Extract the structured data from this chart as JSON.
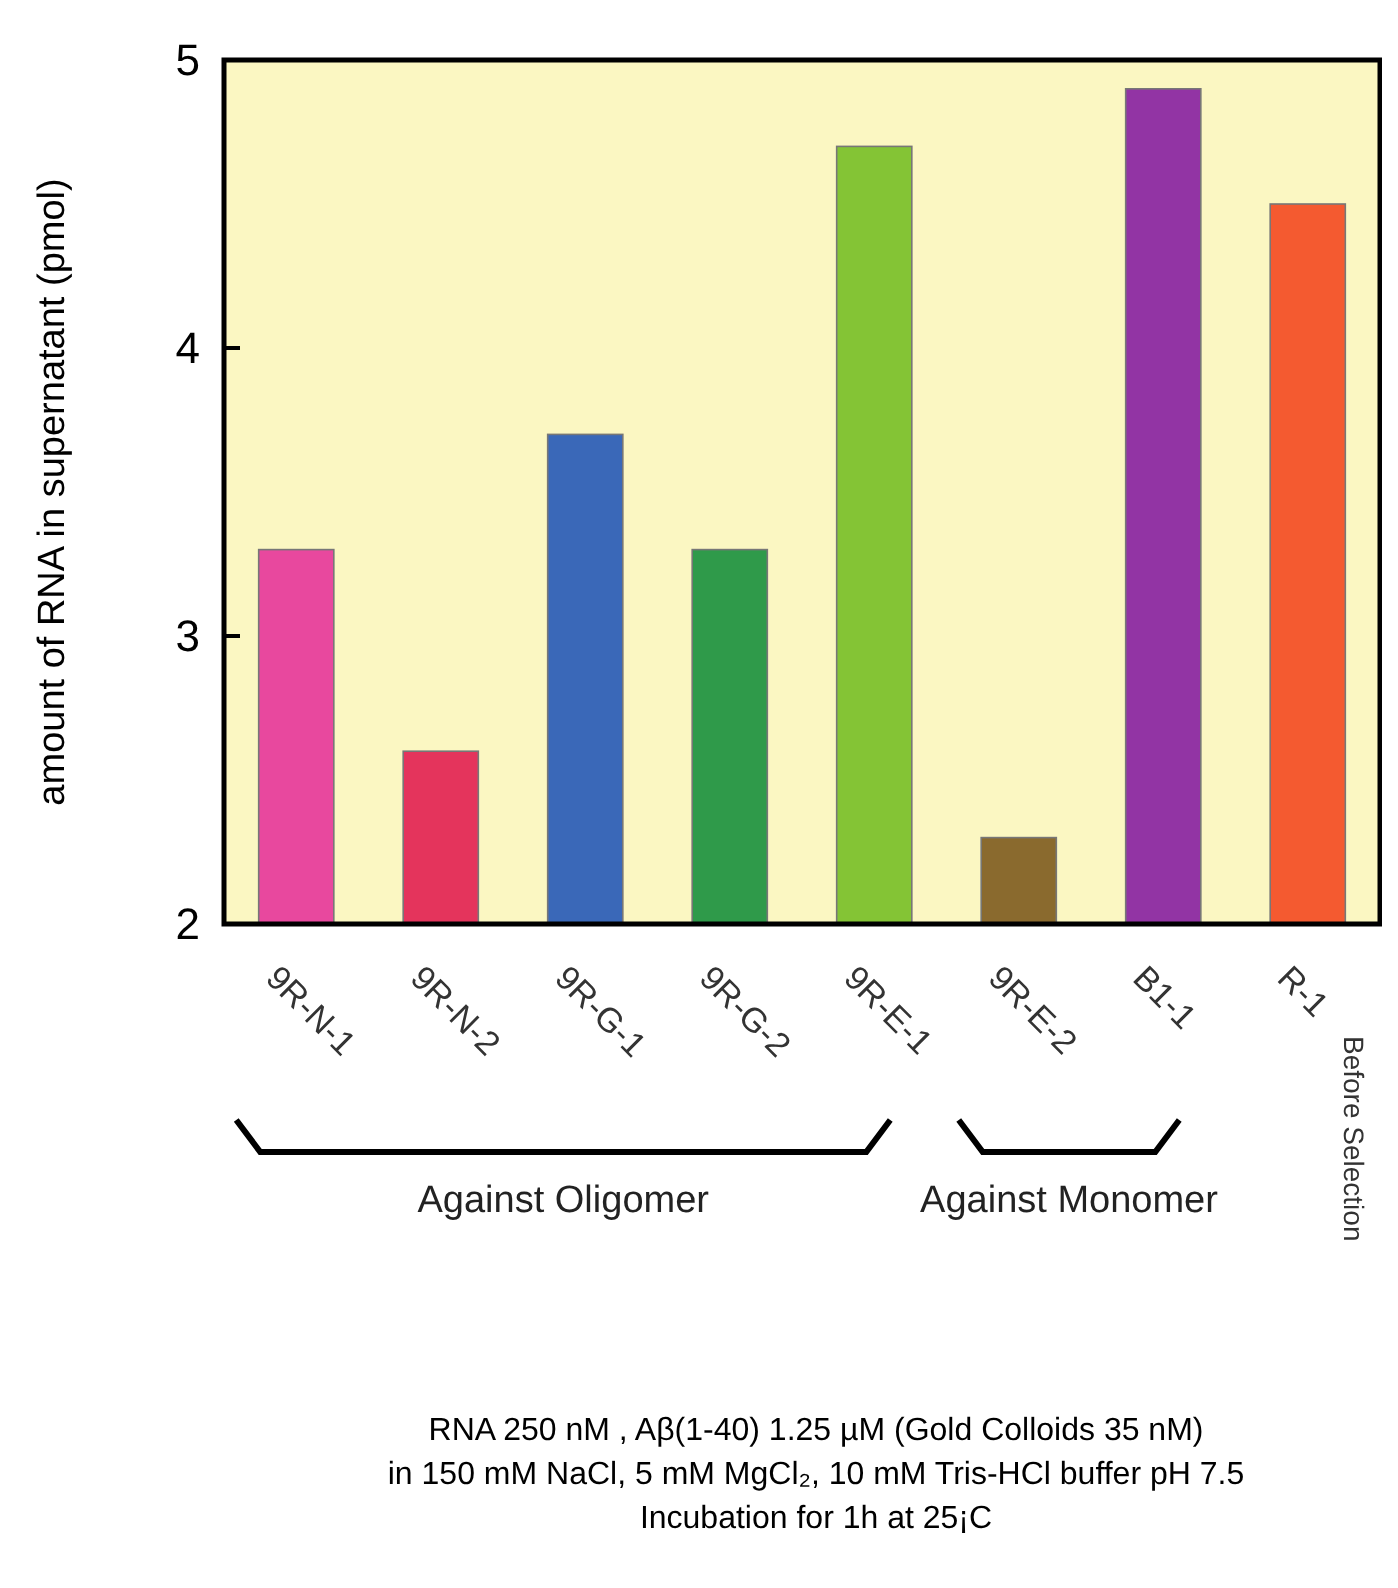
{
  "chart_data": {
    "type": "bar",
    "ylabel": "amount of RNA in supernatant (pmol)",
    "categories": [
      "9R-N-1",
      "9R-N-2",
      "9R-G-1",
      "9R-G-2",
      "9R-E-1",
      "9R-E-2",
      "B1-1",
      "R-1"
    ],
    "values": [
      3.3,
      2.6,
      3.7,
      3.3,
      4.7,
      2.3,
      4.9,
      4.5
    ],
    "colors": [
      "#e8489e",
      "#e4345c",
      "#3a68b8",
      "#2f9a4a",
      "#84c435",
      "#8a6a2e",
      "#9234a4",
      "#f45a30"
    ],
    "ylim": [
      2,
      5
    ],
    "yticks": [
      2,
      3,
      4,
      5
    ],
    "grid": false,
    "annotations": [
      "Against Oligomer",
      "Against Monomer",
      "Before Selection",
      "RNA 250 nM , Aβ(1-40) 1.25 µM (Gold Colloids 35 nM)",
      "in 150 mM NaCl, 5 mM MgCl₂, 10 mM Tris-HCl buffer pH 7.5",
      "Incubation for 1h at 25¡C"
    ]
  }
}
